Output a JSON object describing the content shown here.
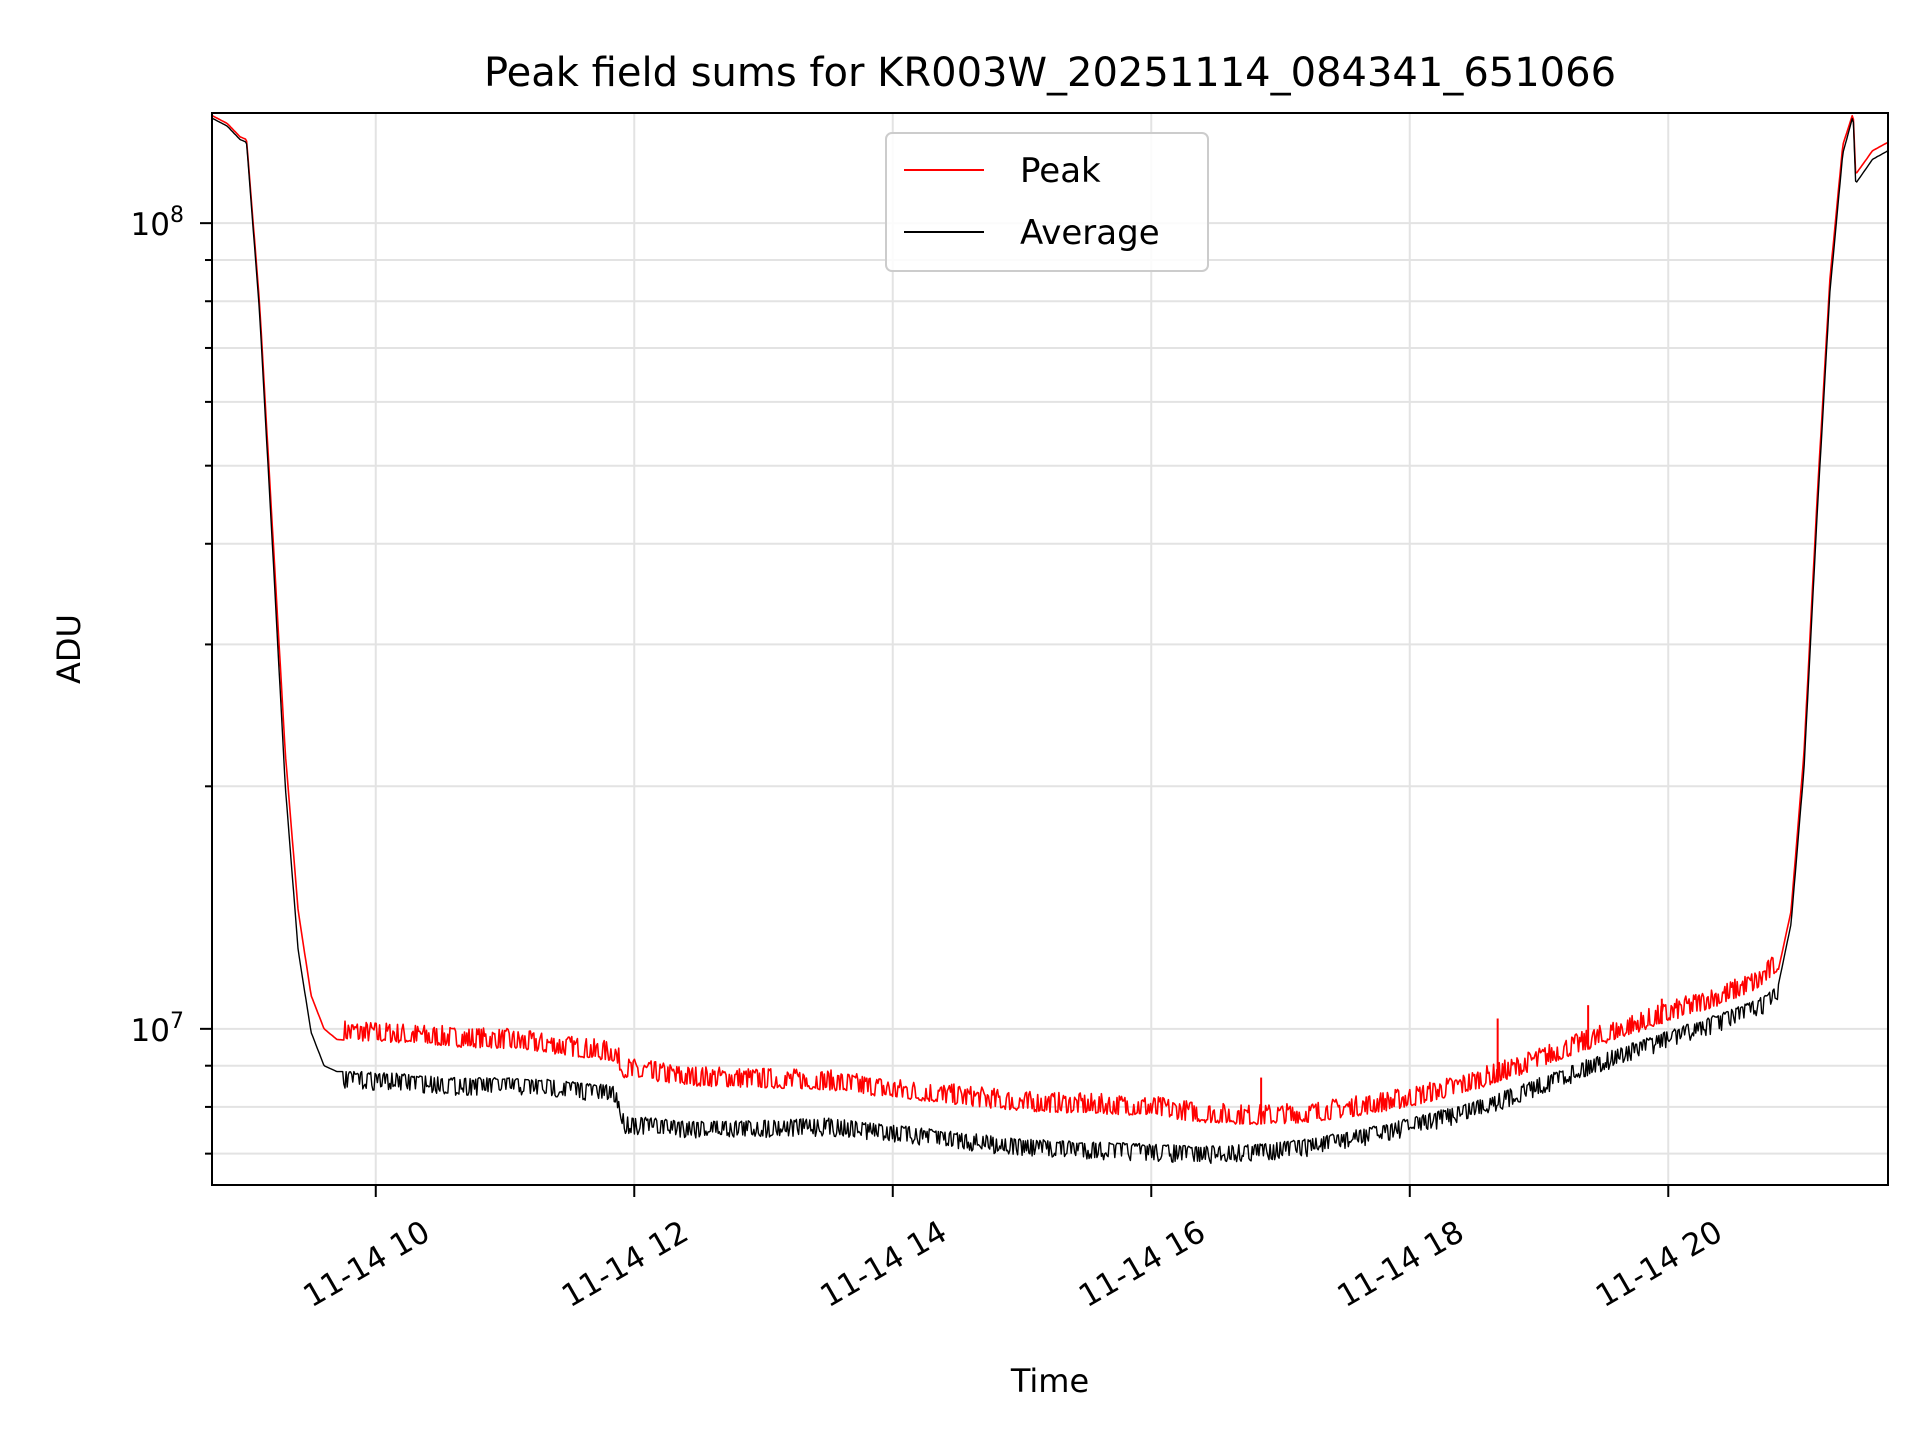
{
  "chart_data": {
    "type": "line",
    "title": "Peak field sums for KR003W_20251114_084341_651066",
    "xlabel": "Time",
    "ylabel": "ADU",
    "yscale": "log",
    "ylim": [
      6400000,
      137000000
    ],
    "xlim": [
      8.733,
      21.7
    ],
    "grid": true,
    "legend_position": "top-center",
    "x_ticks": [
      {
        "value": 10,
        "label": "11-14 10"
      },
      {
        "value": 12,
        "label": "11-14 12"
      },
      {
        "value": 14,
        "label": "11-14 14"
      },
      {
        "value": 16,
        "label": "11-14 16"
      },
      {
        "value": 18,
        "label": "11-14 18"
      },
      {
        "value": 20,
        "label": "11-14 20"
      }
    ],
    "y_ticks": [
      {
        "value": 10000000,
        "base": "10",
        "exp": "7"
      },
      {
        "value": 100000000,
        "base": "10",
        "exp": "8"
      }
    ],
    "x_units": "hour of 2025-11-14",
    "series": [
      {
        "name": "Peak",
        "color": "#ff0000",
        "x": [
          8.733,
          8.85,
          8.95,
          9.0,
          9.1,
          9.2,
          9.3,
          9.4,
          9.5,
          9.6,
          9.7,
          9.9,
          10.2,
          10.6,
          11.0,
          11.4,
          11.85,
          11.92,
          12.4,
          12.9,
          13.5,
          14.0,
          14.5,
          15.0,
          15.5,
          16.0,
          16.4,
          16.8,
          17.2,
          17.6,
          18.0,
          18.4,
          18.8,
          19.2,
          19.6,
          20.0,
          20.4,
          20.7,
          20.85,
          20.95,
          21.05,
          21.15,
          21.25,
          21.35,
          21.43,
          21.45,
          21.5,
          21.58,
          21.7
        ],
        "y": [
          136000000,
          133000000,
          128000000,
          127000000,
          80000000,
          42000000,
          22000000,
          14000000,
          11000000,
          10000000,
          9700000,
          9650000,
          9600000,
          9500000,
          9450000,
          9300000,
          9100000,
          8700000,
          8500000,
          8450000,
          8400000,
          8200000,
          8050000,
          7900000,
          7850000,
          7800000,
          7650000,
          7600000,
          7650000,
          7800000,
          8000000,
          8300000,
          8700000,
          9200000,
          9700000,
          10200000,
          10700000,
          11200000,
          11800000,
          14000000,
          22000000,
          45000000,
          85000000,
          125000000,
          137000000,
          115000000,
          118000000,
          123000000,
          126000000
        ],
        "spikes": [
          {
            "x": 16.85,
            "y": 8700000
          },
          {
            "x": 18.68,
            "y": 10300000
          },
          {
            "x": 19.38,
            "y": 10700000
          },
          {
            "x": 19.95,
            "y": 10900000
          }
        ]
      },
      {
        "name": "Average",
        "color": "#000000",
        "x": [
          8.733,
          8.85,
          8.95,
          9.0,
          9.1,
          9.2,
          9.3,
          9.4,
          9.5,
          9.6,
          9.7,
          9.9,
          10.2,
          10.6,
          11.0,
          11.4,
          11.85,
          11.92,
          12.4,
          12.9,
          13.5,
          14.0,
          14.5,
          15.0,
          15.5,
          16.0,
          16.4,
          16.8,
          17.2,
          17.6,
          18.0,
          18.4,
          18.8,
          19.2,
          19.6,
          20.0,
          20.4,
          20.7,
          20.85,
          20.95,
          21.05,
          21.15,
          21.25,
          21.35,
          21.43,
          21.45,
          21.5,
          21.58,
          21.7
        ],
        "y": [
          135000000,
          132000000,
          127000000,
          126000000,
          78000000,
          40000000,
          20000000,
          12500000,
          9900000,
          9000000,
          8850000,
          8850000,
          8800000,
          8700000,
          8700000,
          8650000,
          8500000,
          7800000,
          7700000,
          7700000,
          7750000,
          7600000,
          7450000,
          7300000,
          7250000,
          7200000,
          7150000,
          7200000,
          7300000,
          7500000,
          7750000,
          8050000,
          8450000,
          8950000,
          9450000,
          9950000,
          10450000,
          10900000,
          11300000,
          13500000,
          21000000,
          43000000,
          82000000,
          122000000,
          136000000,
          112000000,
          115000000,
          120000000,
          123000000
        ]
      }
    ]
  }
}
